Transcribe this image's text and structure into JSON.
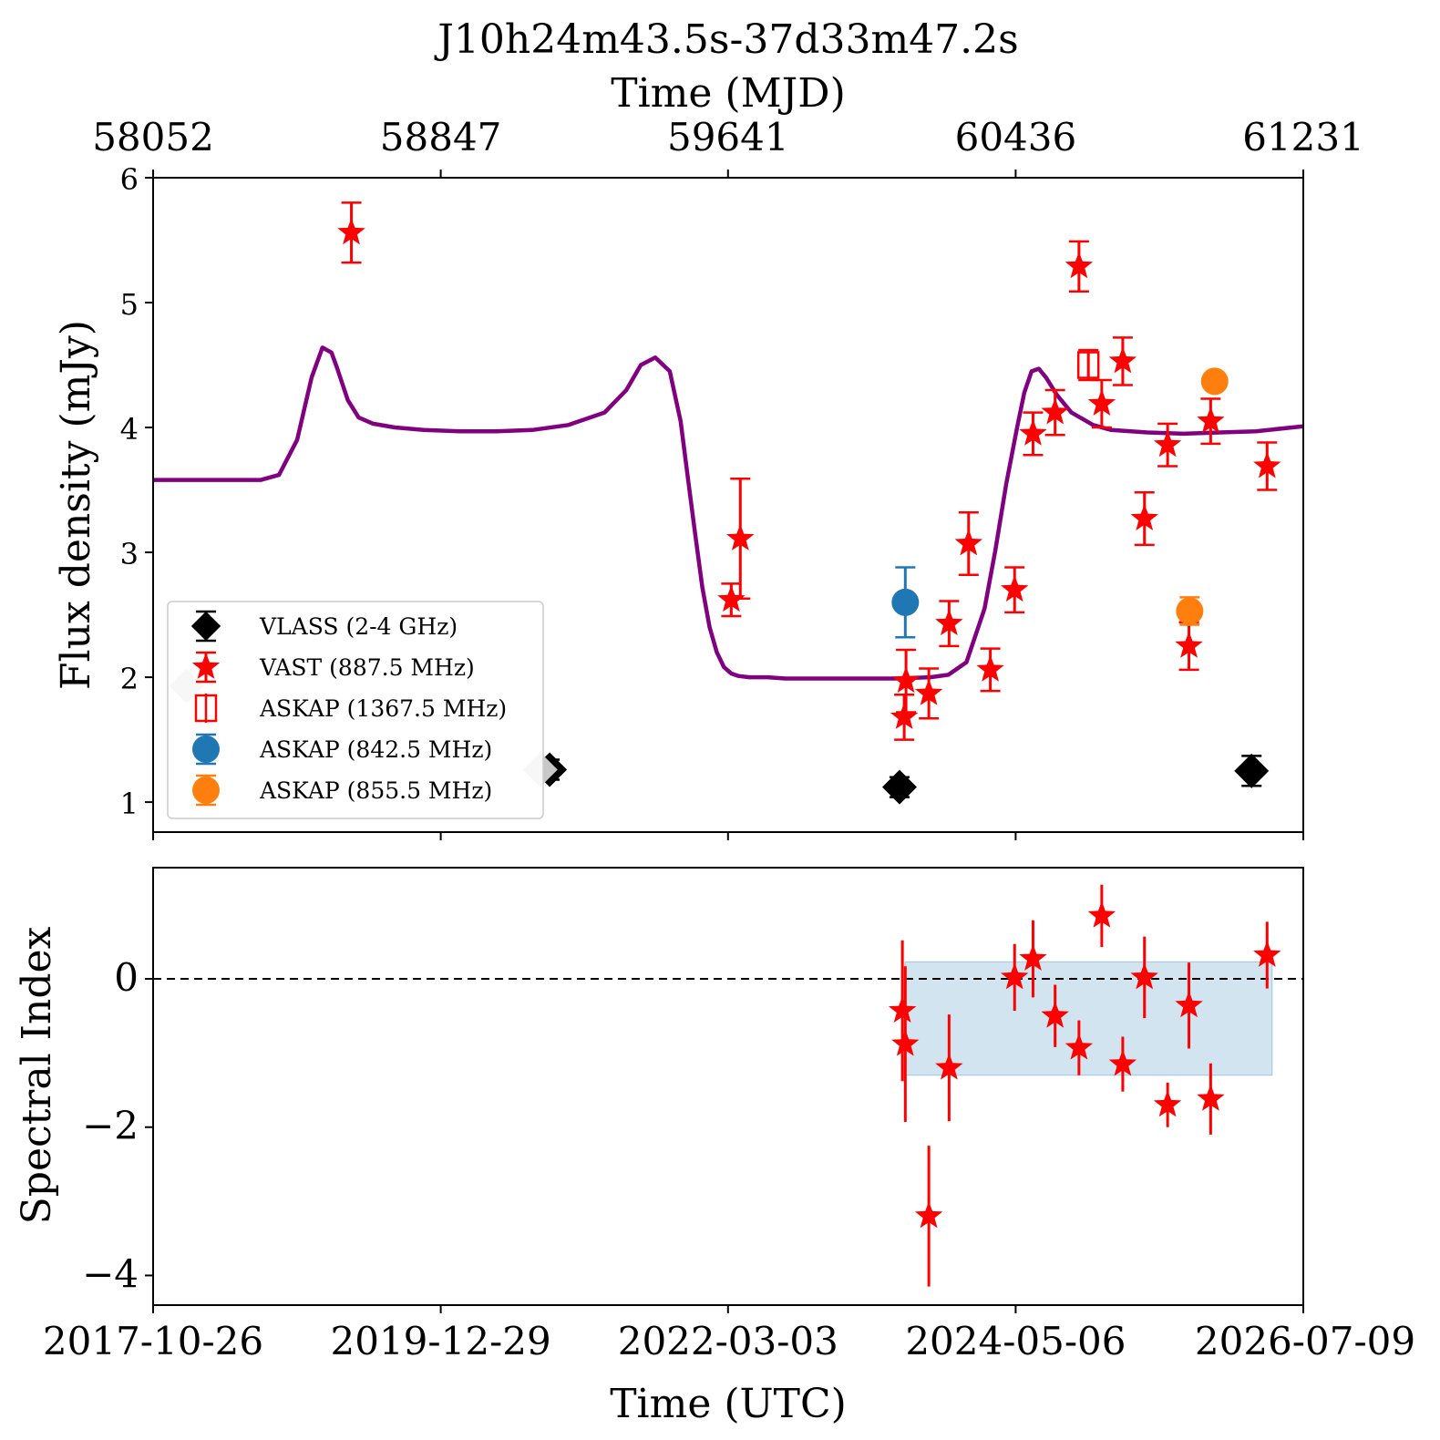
{
  "chart_data": {
    "title": "J10h24m43.5s-37d33m47.2s",
    "x_top_label": "Time (MJD)",
    "x_top_ticks": [
      58052,
      58847,
      59641,
      60436,
      61231
    ],
    "x_bottom_label": "Time (UTC)",
    "x_bottom_ticks": [
      "2017-10-26",
      "2019-12-29",
      "2022-03-03",
      "2024-05-06",
      "2026-07-09"
    ],
    "xlim_mjd": [
      58052,
      61231
    ],
    "colors": {
      "VLASS": "#000000",
      "VAST": "#ff0000",
      "ASKAP1367": "#ff0000",
      "ASKAP842": "#1f77b4",
      "ASKAP855": "#ff7f0e",
      "model": "#800080",
      "band": "#1f77b4",
      "ghost": "#c8c8c8"
    },
    "panels": [
      {
        "name": "flux",
        "type": "scatter",
        "ylabel": "Flux density (mJy)",
        "ylim": [
          0.76,
          6.0
        ],
        "yticks": [
          1,
          2,
          3,
          4,
          5,
          6
        ],
        "legend": {
          "placement": "lower-left",
          "entries": [
            {
              "label": "VLASS (2-4 GHz)",
              "marker": "diamond",
              "series": "VLASS"
            },
            {
              "label": "VAST (887.5 MHz)",
              "marker": "star",
              "series": "VAST"
            },
            {
              "label": "ASKAP (1367.5 MHz)",
              "marker": "open-square",
              "series": "ASKAP1367"
            },
            {
              "label": "ASKAP (842.5 MHz)",
              "marker": "circle",
              "series": "ASKAP842"
            },
            {
              "label": "ASKAP (855.5 MHz)",
              "marker": "circle",
              "series": "ASKAP855"
            }
          ]
        },
        "model_curve": {
          "x": [
            58052,
            58350,
            58400,
            58450,
            58490,
            58520,
            58545,
            58560,
            58590,
            58620,
            58660,
            58720,
            58800,
            58900,
            59000,
            59100,
            59200,
            59300,
            59360,
            59400,
            59440,
            59480,
            59510,
            59530,
            59550,
            59570,
            59590,
            59610,
            59630,
            59650,
            59670,
            59700,
            59750,
            59800,
            59900,
            60000,
            60100,
            60200,
            60250,
            60300,
            60350,
            60380,
            60410,
            60440,
            60460,
            60480,
            60500,
            60520,
            60550,
            60590,
            60650,
            60700,
            60800,
            60900,
            61000,
            61100,
            61231
          ],
          "y": [
            3.58,
            3.58,
            3.62,
            3.9,
            4.4,
            4.64,
            4.6,
            4.48,
            4.22,
            4.08,
            4.03,
            4.0,
            3.98,
            3.97,
            3.97,
            3.98,
            4.02,
            4.12,
            4.3,
            4.5,
            4.56,
            4.45,
            4.05,
            3.6,
            3.15,
            2.72,
            2.4,
            2.2,
            2.08,
            2.03,
            2.01,
            2.0,
            2.0,
            1.99,
            1.99,
            1.99,
            1.99,
            2.0,
            2.02,
            2.12,
            2.55,
            3.02,
            3.55,
            4.0,
            4.28,
            4.45,
            4.47,
            4.4,
            4.26,
            4.12,
            4.02,
            3.98,
            3.96,
            3.95,
            3.96,
            3.97,
            4.01
          ]
        },
        "series": [
          {
            "key": "VLASS",
            "marker": "diamond",
            "points": [
              {
                "x": 59148,
                "y": 1.26,
                "err": 0.08
              },
              {
                "x": 60115,
                "y": 1.12,
                "err": 0.08
              },
              {
                "x": 61088,
                "y": 1.25,
                "err": 0.12
              }
            ]
          },
          {
            "key": "VAST",
            "marker": "star",
            "points": [
              {
                "x": 58600,
                "y": 5.56,
                "err": 0.24
              },
              {
                "x": 59650,
                "y": 2.62,
                "err": 0.13
              },
              {
                "x": 59675,
                "y": 3.11,
                "err": 0.48
              },
              {
                "x": 60128,
                "y": 1.68,
                "err": 0.18
              },
              {
                "x": 60133,
                "y": 1.97,
                "err": 0.25
              },
              {
                "x": 60196,
                "y": 1.87,
                "err": 0.2
              },
              {
                "x": 60252,
                "y": 2.43,
                "err": 0.18
              },
              {
                "x": 60306,
                "y": 3.07,
                "err": 0.25
              },
              {
                "x": 60366,
                "y": 2.06,
                "err": 0.17
              },
              {
                "x": 60433,
                "y": 2.7,
                "err": 0.18
              },
              {
                "x": 60484,
                "y": 3.95,
                "err": 0.17
              },
              {
                "x": 60545,
                "y": 4.12,
                "err": 0.18
              },
              {
                "x": 60611,
                "y": 5.29,
                "err": 0.2
              },
              {
                "x": 60674,
                "y": 4.19,
                "err": 0.19
              },
              {
                "x": 60732,
                "y": 4.53,
                "err": 0.19
              },
              {
                "x": 60792,
                "y": 3.27,
                "err": 0.21
              },
              {
                "x": 60856,
                "y": 3.86,
                "err": 0.17
              },
              {
                "x": 60915,
                "y": 2.25,
                "err": 0.19
              },
              {
                "x": 60975,
                "y": 4.05,
                "err": 0.18
              },
              {
                "x": 61131,
                "y": 3.69,
                "err": 0.19
              }
            ]
          },
          {
            "key": "ASKAP1367",
            "marker": "open-square",
            "points": [
              {
                "x": 60637,
                "y": 4.5,
                "err": 0.12
              }
            ]
          },
          {
            "key": "ASKAP842",
            "marker": "circle",
            "points": [
              {
                "x": 60131,
                "y": 2.6,
                "err": 0.28
              }
            ]
          },
          {
            "key": "ASKAP855",
            "marker": "circle",
            "points": [
              {
                "x": 60917,
                "y": 2.53,
                "err": 0.11
              },
              {
                "x": 60986,
                "y": 4.37,
                "err": 0.05
              }
            ]
          },
          {
            "key": "ghost",
            "marker": "diamond",
            "points": [
              {
                "x": 58144,
                "y": 1.93,
                "err": 0
              },
              {
                "x": 59122,
                "y": 1.26,
                "err": 0
              }
            ]
          }
        ]
      },
      {
        "name": "spectral_index",
        "type": "scatter",
        "ylabel": "Spectral Index",
        "ylim": [
          -4.4,
          1.5
        ],
        "yticks": [
          -4,
          -2,
          0
        ],
        "ytick_labels": [
          "−4",
          "−2",
          "0"
        ],
        "reference_line": 0,
        "band": {
          "x0": 60130,
          "x1": 61145,
          "y0": -1.3,
          "y1": 0.23
        },
        "series": [
          {
            "key": "VAST",
            "marker": "star",
            "points": [
              {
                "x": 60123,
                "y": -0.43,
                "err": 0.95
              },
              {
                "x": 60131,
                "y": -0.88,
                "err": 1.05
              },
              {
                "x": 60196,
                "y": -3.2,
                "err": 0.95
              },
              {
                "x": 60252,
                "y": -1.2,
                "err": 0.72
              },
              {
                "x": 60433,
                "y": 0.02,
                "err": 0.45
              },
              {
                "x": 60484,
                "y": 0.27,
                "err": 0.52
              },
              {
                "x": 60545,
                "y": -0.5,
                "err": 0.42
              },
              {
                "x": 60611,
                "y": -0.93,
                "err": 0.37
              },
              {
                "x": 60674,
                "y": 0.85,
                "err": 0.42
              },
              {
                "x": 60732,
                "y": -1.15,
                "err": 0.37
              },
              {
                "x": 60792,
                "y": 0.02,
                "err": 0.55
              },
              {
                "x": 60856,
                "y": -1.7,
                "err": 0.3
              },
              {
                "x": 60915,
                "y": -0.36,
                "err": 0.58
              },
              {
                "x": 60975,
                "y": -1.62,
                "err": 0.48
              },
              {
                "x": 61131,
                "y": 0.32,
                "err": 0.45
              }
            ]
          }
        ]
      }
    ]
  }
}
